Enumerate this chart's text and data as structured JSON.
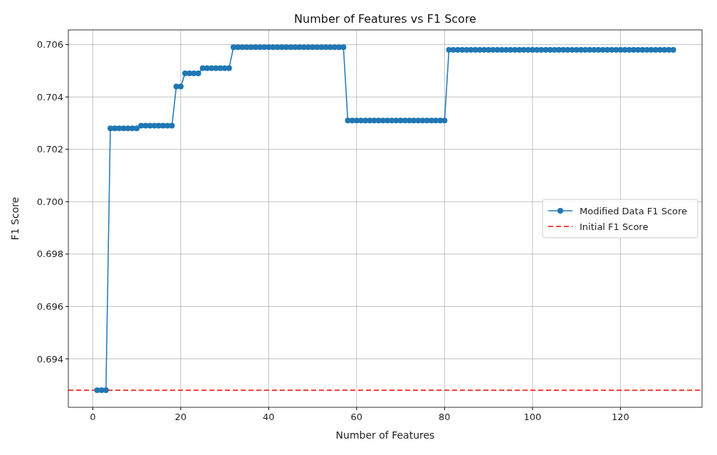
{
  "chart_data": {
    "type": "line",
    "title": "Number of Features vs F1 Score",
    "xlabel": "Number of Features",
    "ylabel": "F1 Score",
    "x": [
      1,
      2,
      3,
      4,
      5,
      6,
      7,
      8,
      9,
      10,
      11,
      12,
      13,
      14,
      15,
      16,
      17,
      18,
      19,
      20,
      21,
      22,
      23,
      24,
      25,
      26,
      27,
      28,
      29,
      30,
      31,
      32,
      33,
      34,
      35,
      36,
      37,
      38,
      39,
      40,
      41,
      42,
      43,
      44,
      45,
      46,
      47,
      48,
      49,
      50,
      51,
      52,
      53,
      54,
      55,
      56,
      57,
      58,
      59,
      60,
      61,
      62,
      63,
      64,
      65,
      66,
      67,
      68,
      69,
      70,
      71,
      72,
      73,
      74,
      75,
      76,
      77,
      78,
      79,
      80,
      81,
      82,
      83,
      84,
      85,
      86,
      87,
      88,
      89,
      90,
      91,
      92,
      93,
      94,
      95,
      96,
      97,
      98,
      99,
      100,
      101,
      102,
      103,
      104,
      105,
      106,
      107,
      108,
      109,
      110,
      111,
      112,
      113,
      114,
      115,
      116,
      117,
      118,
      119,
      120,
      121,
      122,
      123,
      124,
      125,
      126,
      127,
      128,
      129,
      130,
      131,
      132
    ],
    "series": [
      {
        "name": "Modified Data F1 Score",
        "color": "#1f77b4",
        "values": [
          0.6928,
          0.6928,
          0.6928,
          0.7028,
          0.7028,
          0.7028,
          0.7028,
          0.7028,
          0.7028,
          0.7028,
          0.7029,
          0.7029,
          0.7029,
          0.7029,
          0.7029,
          0.7029,
          0.7029,
          0.7029,
          0.7044,
          0.7044,
          0.7049,
          0.7049,
          0.7049,
          0.7049,
          0.7051,
          0.7051,
          0.7051,
          0.7051,
          0.7051,
          0.7051,
          0.7051,
          0.7059,
          0.7059,
          0.7059,
          0.7059,
          0.7059,
          0.7059,
          0.7059,
          0.7059,
          0.7059,
          0.7059,
          0.7059,
          0.7059,
          0.7059,
          0.7059,
          0.7059,
          0.7059,
          0.7059,
          0.7059,
          0.7059,
          0.7059,
          0.7059,
          0.7059,
          0.7059,
          0.7059,
          0.7059,
          0.7059,
          0.7031,
          0.7031,
          0.7031,
          0.7031,
          0.7031,
          0.7031,
          0.7031,
          0.7031,
          0.7031,
          0.7031,
          0.7031,
          0.7031,
          0.7031,
          0.7031,
          0.7031,
          0.7031,
          0.7031,
          0.7031,
          0.7031,
          0.7031,
          0.7031,
          0.7031,
          0.7031,
          0.7058,
          0.7058,
          0.7058,
          0.7058,
          0.7058,
          0.7058,
          0.7058,
          0.7058,
          0.7058,
          0.7058,
          0.7058,
          0.7058,
          0.7058,
          0.7058,
          0.7058,
          0.7058,
          0.7058,
          0.7058,
          0.7058,
          0.7058,
          0.7058,
          0.7058,
          0.7058,
          0.7058,
          0.7058,
          0.7058,
          0.7058,
          0.7058,
          0.7058,
          0.7058,
          0.7058,
          0.7058,
          0.7058,
          0.7058,
          0.7058,
          0.7058,
          0.7058,
          0.7058,
          0.7058,
          0.7058,
          0.7058,
          0.7058,
          0.7058,
          0.7058,
          0.7058,
          0.7058,
          0.7058,
          0.7058,
          0.7058,
          0.7058,
          0.7058,
          0.7058
        ]
      }
    ],
    "ref_lines": [
      {
        "axis": "y",
        "value": 0.6928,
        "label": "Initial F1 Score",
        "color": "#ff0000",
        "line_style": "dashed"
      }
    ],
    "xlim": [
      -5.55,
      138.55
    ],
    "xticks": [
      0,
      20,
      40,
      60,
      80,
      100,
      120
    ],
    "ylim": [
      0.69215,
      0.70656
    ],
    "yticks": [
      {
        "value": 0.694,
        "label": "0.694"
      },
      {
        "value": 0.696,
        "label": "0.696"
      },
      {
        "value": 0.698,
        "label": "0.698"
      },
      {
        "value": 0.7,
        "label": "0.700"
      },
      {
        "value": 0.702,
        "label": "0.702"
      },
      {
        "value": 0.704,
        "label": "0.704"
      },
      {
        "value": 0.706,
        "label": "0.706"
      }
    ],
    "grid": true,
    "legend": "right",
    "marker": "circle",
    "line_style": "solid"
  }
}
